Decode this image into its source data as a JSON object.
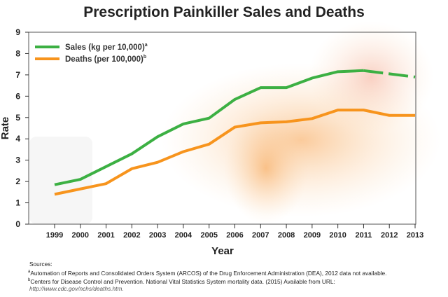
{
  "chart_data": {
    "type": "line",
    "title": "Prescription Painkiller Sales and Deaths",
    "xlabel": "Year",
    "ylabel": "Rate",
    "ylim": [
      0,
      9
    ],
    "yticks": [
      "0",
      "1",
      "2",
      "3",
      "4",
      "5",
      "6",
      "7",
      "8",
      "9"
    ],
    "categories": [
      "1999",
      "2000",
      "2001",
      "2002",
      "2003",
      "2004",
      "2005",
      "2006",
      "2007",
      "2008",
      "2009",
      "2010",
      "2011",
      "2012",
      "2013"
    ],
    "legend_position": "top-left",
    "grid": false,
    "series": [
      {
        "name": "Sales (kg per 10,000)",
        "superscript": "a",
        "color": "#3cb043",
        "values": [
          1.85,
          2.1,
          2.7,
          3.3,
          4.1,
          4.7,
          4.97,
          5.85,
          6.4,
          6.4,
          6.85,
          7.15,
          7.2,
          null,
          6.9
        ]
      },
      {
        "name": "Deaths (per 100,000)",
        "superscript": "b",
        "color": "#f7941d",
        "values": [
          1.4,
          1.65,
          1.9,
          2.6,
          2.9,
          3.4,
          3.75,
          4.55,
          4.75,
          4.8,
          4.95,
          5.35,
          5.35,
          5.1,
          5.1
        ]
      }
    ]
  },
  "sources": {
    "heading": "Sources:",
    "a_mark": "a",
    "a": "Automation of Reports and Consolidated Orders System (ARCOS) of the Drug Enforcement Administration (DEA), 2012 data not available.",
    "b_mark": "b",
    "b": "Centers for Disease Control and Prevention. National Vital Statistics System mortality data. (2015) Available from URL:",
    "url": "http://www.cdc.gov/nchs/deaths.htm."
  }
}
